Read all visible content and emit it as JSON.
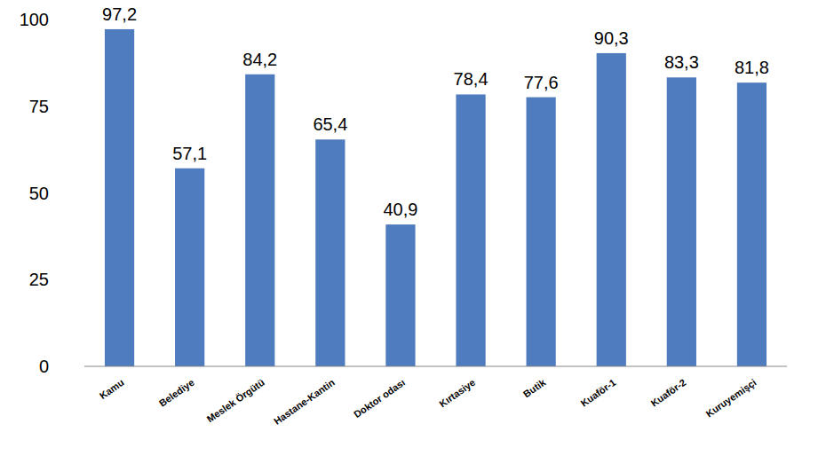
{
  "chart_data": {
    "type": "bar",
    "categories": [
      "Kamu",
      "Belediye",
      "Meslek Örgütü",
      "Hastane-Kantin",
      "Doktor odası",
      "Kırtasiye",
      "Butik",
      "Kuaför-1",
      "Kuaför-2",
      "Kuruyemişçi"
    ],
    "values": [
      97.2,
      57.1,
      84.2,
      65.4,
      40.9,
      78.4,
      77.6,
      90.3,
      83.3,
      81.8
    ],
    "value_labels": [
      "97,2",
      "57,1",
      "84,2",
      "65,4",
      "40,9",
      "78,4",
      "77,6",
      "90,3",
      "83,3",
      "81,8"
    ],
    "data_labels": true,
    "color": "#4f7bbf",
    "ylim": [
      0,
      100
    ],
    "yticks": [
      0,
      25,
      50,
      75,
      100
    ],
    "grid": false
  }
}
